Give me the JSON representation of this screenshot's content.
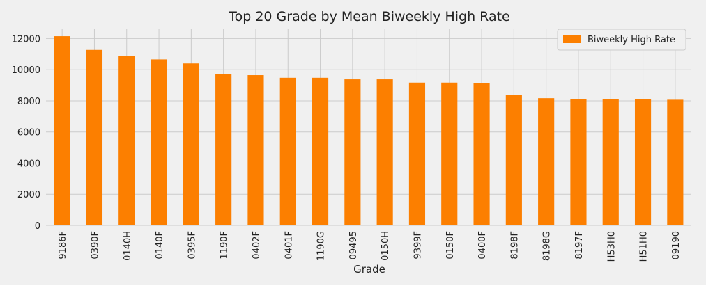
{
  "chart_data": {
    "type": "bar",
    "title": "Top 20 Grade by Mean Biweekly High Rate",
    "xlabel": "Grade",
    "ylabel": "",
    "ylim": [
      0,
      12600
    ],
    "yticks": [
      0,
      2000,
      4000,
      6000,
      8000,
      10000,
      12000
    ],
    "grid": true,
    "legend_position": "top-right",
    "categories": [
      "9186F",
      "0390F",
      "0140H",
      "0140F",
      "0395F",
      "1190F",
      "0402F",
      "0401F",
      "1190G",
      "09495",
      "0150H",
      "9399F",
      "0150F",
      "0400F",
      "8198F",
      "8198G",
      "8197F",
      "H53H0",
      "H51H0",
      "09190"
    ],
    "series": [
      {
        "name": "Biweekly High Rate",
        "color": "#fc7f00",
        "values": [
          12150,
          11270,
          10880,
          10660,
          10400,
          9740,
          9650,
          9480,
          9480,
          9380,
          9380,
          9170,
          9170,
          9120,
          8390,
          8170,
          8110,
          8110,
          8110,
          8070
        ]
      }
    ],
    "colors": {
      "background": "#f0f0f0",
      "grid": "#cbcbcb",
      "text": "#222222"
    }
  }
}
